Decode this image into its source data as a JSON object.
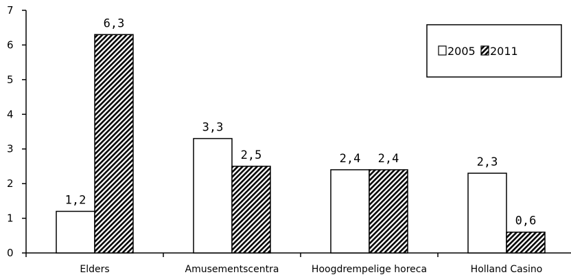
{
  "chart_data": {
    "type": "bar",
    "categories": [
      "Elders",
      "Amusementscentra",
      "Hoogdrempelige horeca",
      "Holland Casino"
    ],
    "series": [
      {
        "name": "2005",
        "values": [
          1.2,
          3.3,
          2.4,
          2.3
        ],
        "data_labels": [
          "1,2",
          "3,3",
          "2,4",
          "2,3"
        ],
        "fill": "#ffffff"
      },
      {
        "name": "2011",
        "values": [
          6.3,
          2.5,
          2.4,
          0.6
        ],
        "data_labels": [
          "6,3",
          "2,5",
          "2,4",
          "0,6"
        ],
        "fill": "hatched"
      }
    ],
    "ylim": [
      0,
      7
    ],
    "yticks": [
      "0",
      "1",
      "2",
      "3",
      "4",
      "5",
      "6",
      "7"
    ],
    "grid": false,
    "legend_position": "top-right",
    "title": "",
    "xlabel": "",
    "ylabel": ""
  }
}
